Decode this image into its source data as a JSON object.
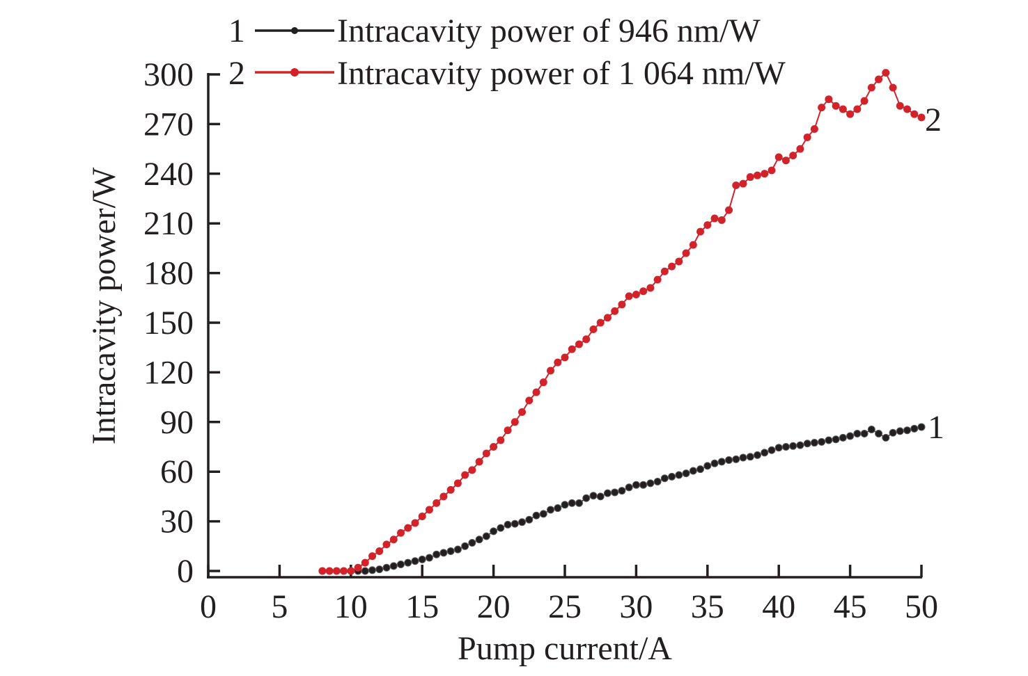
{
  "chart_data": {
    "type": "line",
    "title": "",
    "xlabel": "Pump current/A",
    "ylabel": "Intracavity power/W",
    "xlim": [
      0,
      50
    ],
    "ylim": [
      0,
      300
    ],
    "x_ticks": [
      0,
      5,
      10,
      15,
      20,
      25,
      30,
      35,
      40,
      45,
      50
    ],
    "y_ticks": [
      0,
      30,
      60,
      90,
      120,
      150,
      180,
      210,
      240,
      270,
      300
    ],
    "x_tick_labels": [
      "0",
      "5",
      "10",
      "15",
      "20",
      "25",
      "30",
      "35",
      "40",
      "45",
      "50"
    ],
    "y_tick_labels": [
      "0",
      "30",
      "60",
      "90",
      "120",
      "150",
      "180",
      "210",
      "240",
      "270",
      "300"
    ],
    "grid": false,
    "legend_position": "top",
    "legend": [
      {
        "number": "1",
        "label": "Intracavity power of 946 nm/W",
        "color": "#231f20"
      },
      {
        "number": "2",
        "label": "Intracavity power of 1 064 nm/W",
        "color": "#d2232a"
      }
    ],
    "series": [
      {
        "name": "Intracavity power of 946 nm/W",
        "curve_label": "1",
        "color": "#231f20",
        "x": [
          10.5,
          11.0,
          11.5,
          12.0,
          12.5,
          13.0,
          13.5,
          14.0,
          14.5,
          15.0,
          15.5,
          16.0,
          16.5,
          17.0,
          17.5,
          18.0,
          18.5,
          19.0,
          19.5,
          20.0,
          20.5,
          21.0,
          21.5,
          22.0,
          22.5,
          23.0,
          23.5,
          24.0,
          24.5,
          25.0,
          25.5,
          26.0,
          26.5,
          27.0,
          27.5,
          28.0,
          28.5,
          29.0,
          29.5,
          30.0,
          30.5,
          31.0,
          31.5,
          32.0,
          32.5,
          33.0,
          33.5,
          34.0,
          34.5,
          35.0,
          35.5,
          36.0,
          36.5,
          37.0,
          37.5,
          38.0,
          38.5,
          39.0,
          39.5,
          40.0,
          40.5,
          41.0,
          41.5,
          42.0,
          42.5,
          43.0,
          43.5,
          44.0,
          44.5,
          45.0,
          45.5,
          46.0,
          46.5,
          47.0,
          47.5,
          48.0,
          48.5,
          49.0,
          49.5,
          50.0
        ],
        "values": [
          0,
          0,
          0.5,
          1,
          2,
          3,
          4,
          5,
          6,
          7,
          8,
          10,
          11,
          12,
          13,
          15,
          17,
          19,
          21,
          24,
          26,
          28,
          28.5,
          29.5,
          31,
          33.5,
          34.5,
          37,
          38,
          40,
          41,
          41,
          44,
          45.5,
          45,
          47,
          47.5,
          48.5,
          50.5,
          52,
          52,
          53,
          54,
          56,
          57,
          58,
          59,
          60.5,
          61.5,
          63.5,
          65,
          66,
          67,
          67.5,
          68.5,
          69,
          70,
          71.5,
          73,
          74.5,
          75,
          75.5,
          76,
          77,
          77.5,
          78,
          79,
          79.5,
          80.5,
          81.5,
          83,
          83,
          85.5,
          83,
          80.5,
          83.5,
          84.5,
          85,
          86,
          87
        ]
      },
      {
        "name": "Intracavity power of 1 064 nm/W",
        "curve_label": "2",
        "color": "#d2232a",
        "x": [
          8.0,
          8.5,
          9.0,
          9.5,
          10.0,
          10.5,
          11.0,
          11.5,
          12.0,
          12.5,
          13.0,
          13.5,
          14.0,
          14.5,
          15.0,
          15.5,
          16.0,
          16.5,
          17.0,
          17.5,
          18.0,
          18.5,
          19.0,
          19.5,
          20.0,
          20.5,
          21.0,
          21.5,
          22.0,
          22.5,
          23.0,
          23.5,
          24.0,
          24.5,
          25.0,
          25.5,
          26.0,
          26.5,
          27.0,
          27.5,
          28.0,
          28.5,
          29.0,
          29.5,
          30.0,
          30.5,
          31.0,
          31.5,
          32.0,
          32.5,
          33.0,
          33.5,
          34.0,
          34.5,
          35.0,
          35.5,
          36.0,
          36.5,
          37.0,
          37.5,
          38.0,
          38.5,
          39.0,
          39.5,
          40.0,
          40.5,
          41.0,
          41.5,
          42.0,
          42.5,
          43.0,
          43.5,
          44.0,
          44.5,
          45.0,
          45.5,
          46.0,
          46.5,
          47.0,
          47.5,
          48.0,
          48.5,
          49.0,
          49.5,
          50.0
        ],
        "values": [
          0,
          0,
          0,
          0,
          0,
          2,
          5,
          9,
          12,
          16,
          19,
          23,
          26,
          29,
          33,
          37,
          41,
          45,
          49,
          53,
          58,
          61,
          66,
          71,
          75,
          79,
          85,
          90,
          96,
          103,
          108,
          114,
          121,
          126,
          129,
          134,
          137,
          140,
          146,
          150,
          153,
          157,
          161,
          166,
          167,
          169,
          171,
          176,
          181,
          184,
          187,
          192,
          197,
          205,
          209,
          213,
          212,
          218,
          233,
          234,
          238,
          239,
          240,
          242,
          250,
          248,
          251,
          255,
          262,
          267,
          280,
          285,
          281,
          279,
          276,
          279,
          284,
          292,
          297,
          301,
          292,
          281,
          279,
          276,
          274
        ]
      }
    ]
  }
}
